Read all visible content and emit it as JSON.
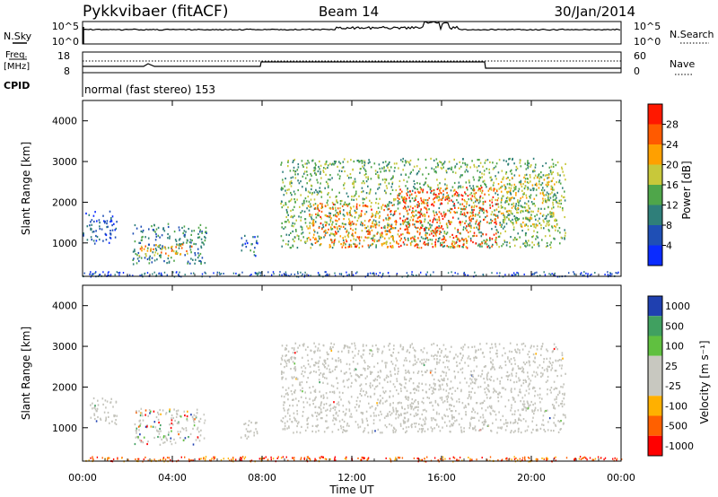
{
  "header": {
    "title": "Pykkvibaer (fitACF)",
    "beam": "Beam 14",
    "date": "30/Jan/2014"
  },
  "top_panels": {
    "nsky_label": "N.Sky",
    "nsearch_label": "N.Search",
    "noise_ticks_left": [
      "10^5",
      "10^0"
    ],
    "noise_ticks_right": [
      "10^5",
      "10^0"
    ],
    "freq_label": "Freq.",
    "freq_unit": "[MHz]",
    "freq_ticks": [
      "18",
      "8"
    ],
    "nave_label": "Nave",
    "nave_ticks": [
      "60",
      "0"
    ],
    "cpid_label": "CPID",
    "cpid_text": "normal (fast stereo) 153"
  },
  "colors": {
    "power_scale": [
      "#0a2bff",
      "#1f4fb5",
      "#2f7f7a",
      "#4fa64a",
      "#c8c83a",
      "#ffa000",
      "#ff5a00",
      "#ff1800"
    ],
    "velocity_scale": [
      "#ff0000",
      "#ff6000",
      "#ffb000",
      "#c8c8c0",
      "#c8c8c0",
      "#60c040",
      "#40a060",
      "#1f40b0"
    ],
    "ground_scatter": "#c4c4bc"
  },
  "chart_data": [
    {
      "type": "heatmap",
      "name": "power",
      "ylabel": "Slant Range [km]",
      "y_ticks": [
        "1000",
        "2000",
        "3000",
        "4000"
      ],
      "ylim": [
        180,
        4500
      ],
      "x_ticks": [
        "00:00",
        "04:00",
        "08:00",
        "12:00",
        "16:00",
        "20:00",
        "00:00"
      ],
      "colorbar": {
        "label": "Power [dB]",
        "ticks": [
          "4",
          "8",
          "12",
          "16",
          "20",
          "24",
          "28"
        ],
        "range": [
          0,
          32
        ]
      },
      "regions": [
        {
          "t0": 0.0,
          "t1": 1.5,
          "r0": 1000,
          "r1": 1800,
          "level": 6
        },
        {
          "t0": 2.2,
          "t1": 5.5,
          "r0": 500,
          "r1": 1500,
          "level": 10
        },
        {
          "t0": 2.5,
          "t1": 5.0,
          "r0": 700,
          "r1": 1000,
          "level": 22
        },
        {
          "t0": 7.0,
          "t1": 7.8,
          "r0": 700,
          "r1": 1200,
          "level": 8
        },
        {
          "t0": 8.8,
          "t1": 21.5,
          "r0": 900,
          "r1": 3100,
          "level": 14
        },
        {
          "t0": 10.0,
          "t1": 14.0,
          "r0": 900,
          "r1": 2000,
          "level": 24
        },
        {
          "t0": 14.0,
          "t1": 18.5,
          "r0": 900,
          "r1": 2400,
          "level": 27
        },
        {
          "t0": 18.5,
          "t1": 21.0,
          "r0": 1400,
          "r1": 2700,
          "level": 18
        }
      ]
    },
    {
      "type": "heatmap",
      "name": "velocity",
      "ylabel": "Slant Range [km]",
      "xlabel": "Time UT",
      "y_ticks": [
        "1000",
        "2000",
        "3000",
        "4000"
      ],
      "ylim": [
        180,
        4500
      ],
      "x_ticks": [
        "00:00",
        "04:00",
        "08:00",
        "12:00",
        "16:00",
        "20:00",
        "00:00"
      ],
      "colorbar": {
        "label": "Velocity [m s⁻¹]",
        "ticks": [
          "1000",
          "500",
          "100",
          "25",
          "-25",
          "-100",
          "-500",
          "-1000"
        ]
      },
      "regions": [
        {
          "t0": 0.3,
          "t1": 1.5,
          "r0": 1100,
          "r1": 1800,
          "class": "ground"
        },
        {
          "t0": 2.3,
          "t1": 5.5,
          "r0": 600,
          "r1": 1500,
          "class": "mixed"
        },
        {
          "t0": 7.0,
          "t1": 7.8,
          "r0": 700,
          "r1": 1200,
          "class": "ground"
        },
        {
          "t0": 8.8,
          "t1": 21.5,
          "r0": 900,
          "r1": 3100,
          "class": "ground"
        }
      ]
    }
  ],
  "axis": {
    "time_label": "Time UT"
  }
}
